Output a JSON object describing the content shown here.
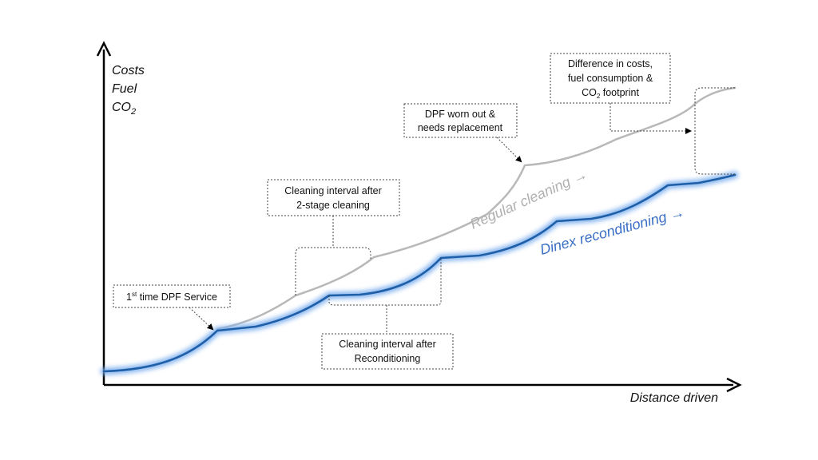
{
  "y_axis_labels": [
    "Costs",
    "Fuel",
    "CO",
    "2"
  ],
  "x_axis_label": "Distance driven",
  "series": {
    "regular": {
      "name": "Regular cleaning",
      "arrow": "→",
      "color": "#b8b8b8"
    },
    "dinex": {
      "name": "Dinex reconditioning",
      "arrow": "→",
      "color": "#1f5fa8",
      "glow": "#7fb0ee"
    }
  },
  "callouts": {
    "first_service": {
      "pre": "1",
      "sup": "st",
      "post": " time DPF Service"
    },
    "two_stage": {
      "line1": "Cleaning interval after",
      "line2": "2-stage cleaning"
    },
    "worn_out": {
      "line1": "DPF worn out &",
      "line2": "needs replacement"
    },
    "difference": {
      "line1": "Difference in costs,",
      "line2": "fuel consumption &",
      "line3_pre": "CO",
      "line3_sub": "2",
      "line3_post": " footprint"
    },
    "reconditioning": {
      "line1": "Cleaning interval after",
      "line2": "Reconditioning"
    }
  }
}
